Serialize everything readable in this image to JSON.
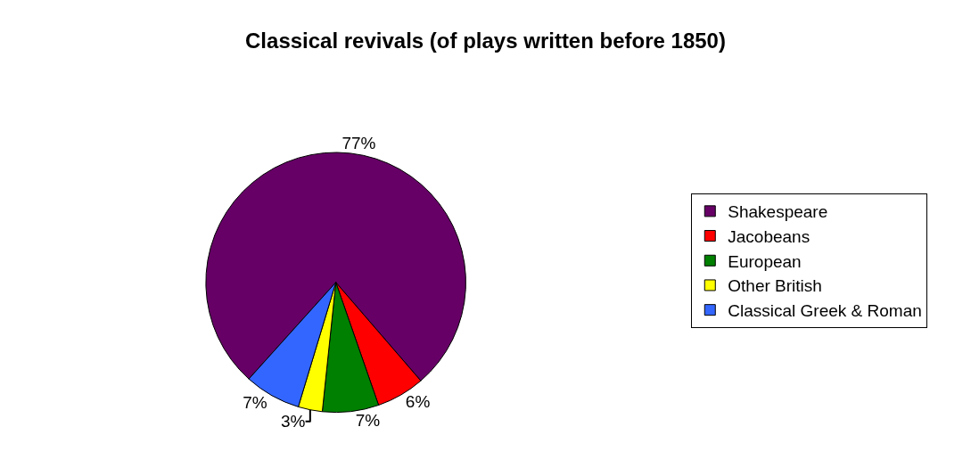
{
  "chart_data": {
    "type": "pie",
    "title": "Classical revivals (of plays written before 1850)",
    "categories": [
      "Shakespeare",
      "Jacobeans",
      "European",
      "Other British",
      "Classical Greek & Roman"
    ],
    "values": [
      77,
      6,
      7,
      3,
      7
    ],
    "colors": [
      "#660066",
      "#ff0000",
      "#008000",
      "#ffff00",
      "#3366ff"
    ],
    "value_labels": [
      "77%",
      "6%",
      "7%",
      "3%",
      "7%"
    ],
    "legend": "right"
  }
}
